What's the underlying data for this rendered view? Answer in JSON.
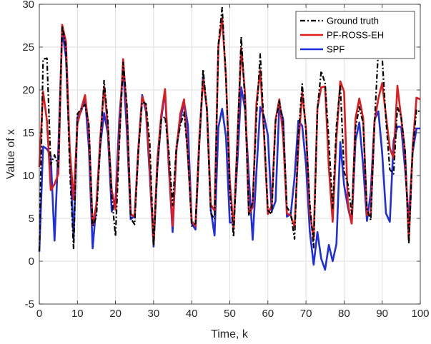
{
  "chart_data": {
    "type": "line",
    "xlabel": "Time, k",
    "ylabel": "Value of x",
    "xlim": [
      0,
      100
    ],
    "ylim": [
      -5,
      30
    ],
    "xticks": [
      0,
      10,
      20,
      30,
      40,
      50,
      60,
      70,
      80,
      90,
      100
    ],
    "yticks": [
      -5,
      0,
      5,
      10,
      15,
      20,
      25,
      30
    ],
    "grid": true,
    "legend_position": "top-right",
    "series": [
      {
        "name": "Ground truth",
        "color": "#000000",
        "style": "dashdot",
        "x": [
          0,
          1,
          2,
          3,
          4,
          5,
          6,
          7,
          8,
          9,
          10,
          11,
          12,
          13,
          14,
          15,
          16,
          17,
          18,
          19,
          20,
          21,
          22,
          23,
          24,
          25,
          26,
          27,
          28,
          29,
          30,
          31,
          32,
          33,
          34,
          35,
          36,
          37,
          38,
          39,
          40,
          41,
          42,
          43,
          44,
          45,
          46,
          47,
          48,
          49,
          50,
          51,
          52,
          53,
          54,
          55,
          56,
          57,
          58,
          59,
          60,
          61,
          62,
          63,
          64,
          65,
          66,
          67,
          68,
          69,
          70,
          71,
          72,
          73,
          74,
          75,
          76,
          77,
          78,
          79,
          80,
          81,
          82,
          83,
          84,
          85,
          86,
          87,
          88,
          89,
          90,
          91,
          92,
          93,
          94,
          95,
          96,
          97,
          98,
          99,
          100
        ],
        "y": [
          1.2,
          23.6,
          23.7,
          11.3,
          12.4,
          11.0,
          27.5,
          25.0,
          10.8,
          1.4,
          17.2,
          17.8,
          18.3,
          16.0,
          4.1,
          5.2,
          13.6,
          21.1,
          16.4,
          7.6,
          2.9,
          13.6,
          23.2,
          18.2,
          5.0,
          4.3,
          12.8,
          18.6,
          18.4,
          13.7,
          1.8,
          11.0,
          16.5,
          16.9,
          12.8,
          6.5,
          13.5,
          15.8,
          17.4,
          12.3,
          4.1,
          4.4,
          13.8,
          22.4,
          17.6,
          5.6,
          4.9,
          25.3,
          29.6,
          21.3,
          8.4,
          2.8,
          13.9,
          26.2,
          18.6,
          5.4,
          6.9,
          16.9,
          24.2,
          15.2,
          5.9,
          5.5,
          16.3,
          18.7,
          16.2,
          6.3,
          5.6,
          2.6,
          14.6,
          20.7,
          15.1,
          6.8,
          1.6,
          17.8,
          22.2,
          20.8,
          14.0,
          6.2,
          15.8,
          20.6,
          10.5,
          9.0,
          5.5,
          15.6,
          18.0,
          16.1,
          6.1,
          4.8,
          16.2,
          24.8,
          23.8,
          16.5,
          10.7,
          10.2,
          18.0,
          16.9,
          12.9,
          2.0,
          12.9,
          17.7,
          17.4
        ]
      },
      {
        "name": "PF-ROSS-EH",
        "color": "#e31a1c",
        "style": "solid",
        "x": [
          0,
          1,
          2,
          3,
          4,
          5,
          6,
          7,
          8,
          9,
          10,
          11,
          12,
          13,
          14,
          15,
          16,
          17,
          18,
          19,
          20,
          21,
          22,
          23,
          24,
          25,
          26,
          27,
          28,
          29,
          30,
          31,
          32,
          33,
          34,
          35,
          36,
          37,
          38,
          39,
          40,
          41,
          42,
          43,
          44,
          45,
          46,
          47,
          48,
          49,
          50,
          51,
          52,
          53,
          54,
          55,
          56,
          57,
          58,
          59,
          60,
          61,
          62,
          63,
          64,
          65,
          66,
          67,
          68,
          69,
          70,
          71,
          72,
          73,
          74,
          75,
          76,
          77,
          78,
          79,
          80,
          81,
          82,
          83,
          84,
          85,
          86,
          87,
          88,
          89,
          90,
          91,
          92,
          93,
          94,
          95,
          96,
          97,
          98,
          99,
          100
        ],
        "y": [
          11.0,
          19.8,
          16.4,
          8.3,
          9.0,
          10.2,
          27.6,
          25.6,
          13.1,
          7.2,
          16.0,
          17.8,
          19.4,
          15.4,
          4.2,
          6.6,
          14.4,
          20.4,
          15.6,
          8.3,
          6.0,
          14.6,
          23.6,
          17.3,
          5.5,
          5.2,
          13.0,
          19.2,
          18.0,
          10.9,
          2.0,
          11.9,
          17.1,
          20.1,
          11.5,
          4.1,
          13.1,
          17.2,
          18.9,
          12.3,
          4.7,
          4.1,
          14.5,
          21.2,
          17.9,
          6.6,
          5.9,
          25.1,
          28.4,
          21.4,
          9.4,
          3.7,
          14.3,
          24.9,
          19.6,
          5.5,
          6.3,
          18.5,
          22.3,
          14.6,
          5.5,
          6.5,
          16.5,
          18.9,
          14.6,
          5.6,
          5.3,
          4.0,
          13.4,
          19.7,
          15.5,
          5.8,
          2.6,
          17.9,
          20.3,
          20.4,
          10.9,
          4.6,
          14.4,
          21.0,
          19.8,
          6.7,
          4.4,
          16.7,
          19.0,
          16.7,
          5.4,
          5.4,
          16.3,
          19.0,
          20.8,
          17.0,
          13.2,
          12.0,
          20.5,
          16.7,
          12.7,
          2.4,
          13.3,
          19.1,
          18.9
        ]
      },
      {
        "name": "SPF",
        "color": "#1f2ee0",
        "style": "solid",
        "x": [
          0,
          1,
          2,
          3,
          4,
          5,
          6,
          7,
          8,
          9,
          10,
          11,
          12,
          13,
          14,
          15,
          16,
          17,
          18,
          19,
          20,
          21,
          22,
          23,
          24,
          25,
          26,
          27,
          28,
          29,
          30,
          31,
          32,
          33,
          34,
          35,
          36,
          37,
          38,
          39,
          40,
          41,
          42,
          43,
          44,
          45,
          46,
          47,
          48,
          49,
          50,
          51,
          52,
          53,
          54,
          55,
          56,
          57,
          58,
          59,
          60,
          61,
          62,
          63,
          64,
          65,
          66,
          67,
          68,
          69,
          70,
          71,
          72,
          73,
          74,
          75,
          76,
          77,
          78,
          79,
          80,
          81,
          82,
          83,
          84,
          85,
          86,
          87,
          88,
          89,
          90,
          91,
          92,
          93,
          94,
          95,
          96,
          97,
          98,
          99,
          100
        ],
        "y": [
          1.1,
          13.4,
          13.1,
          12.3,
          2.4,
          13.3,
          27.0,
          23.8,
          13.0,
          2.6,
          16.8,
          17.5,
          19.1,
          13.3,
          1.5,
          6.7,
          13.5,
          17.3,
          14.9,
          5.8,
          7.1,
          16.6,
          22.6,
          15.0,
          4.9,
          5.3,
          13.2,
          19.4,
          17.5,
          9.9,
          1.7,
          10.9,
          16.6,
          19.8,
          10.9,
          3.4,
          13.0,
          16.5,
          18.6,
          15.9,
          4.4,
          3.7,
          13.8,
          21.7,
          17.7,
          6.0,
          3.0,
          15.6,
          17.8,
          14.5,
          4.5,
          4.5,
          11.7,
          20.3,
          17.8,
          9.8,
          2.5,
          10.5,
          18.0,
          16.9,
          14.7,
          5.8,
          7.0,
          18.2,
          16.6,
          5.2,
          5.5,
          9.8,
          16.4,
          15.8,
          11.3,
          3.5,
          -0.4,
          3.4,
          0.3,
          -1.0,
          1.9,
          0.0,
          2.0,
          13.9,
          8.9,
          6.3,
          4.4,
          14.1,
          16.2,
          11.1,
          4.7,
          8.0,
          16.5,
          17.5,
          12.6,
          5.6,
          4.6,
          14.1,
          15.7,
          15.7,
          10.8,
          4.8,
          12.7,
          15.5,
          15.5
        ]
      }
    ]
  }
}
